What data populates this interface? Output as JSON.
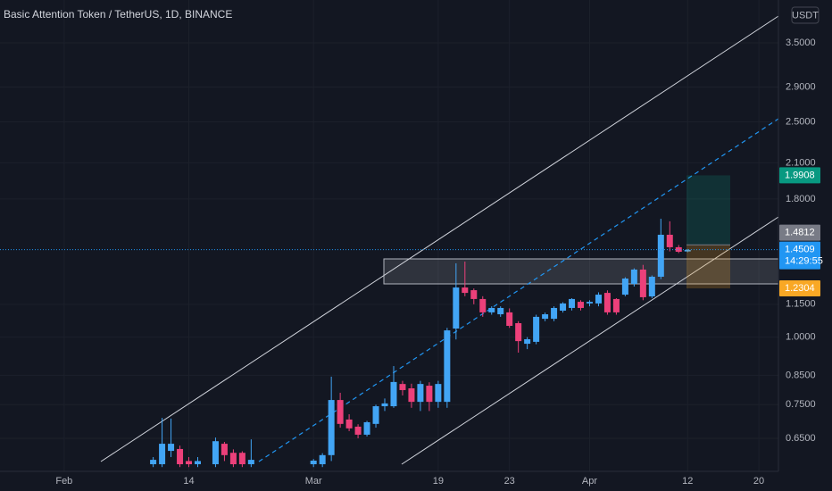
{
  "chart_data": {
    "type": "candlestick",
    "title": "Basic Attention Token / TetherUS, 1D, BINANCE",
    "currency_button": "USDT",
    "log_scale": true,
    "grid": true,
    "up_color": "#42a5f5",
    "down_color": "#ec407a",
    "x": [
      10,
      11,
      12,
      13,
      14,
      15,
      17,
      18,
      19,
      20,
      21,
      28,
      29,
      30,
      31,
      32,
      33,
      34,
      35,
      36,
      37,
      38,
      39,
      40,
      41,
      42,
      43,
      44,
      45,
      46,
      47,
      48,
      49,
      50,
      51,
      52,
      53,
      54,
      55,
      56,
      57,
      58,
      59,
      60,
      61,
      62,
      63,
      64,
      65,
      66,
      67,
      68,
      69,
      70
    ],
    "open": [
      0.582,
      0.582,
      0.616,
      0.621,
      0.59,
      0.582,
      0.582,
      0.635,
      0.611,
      0.611,
      0.582,
      0.582,
      0.582,
      0.605,
      0.765,
      0.704,
      0.683,
      0.66,
      0.691,
      0.745,
      0.745,
      0.819,
      0.804,
      0.759,
      0.813,
      0.759,
      0.759,
      1.037,
      1.235,
      1.221,
      1.176,
      1.111,
      1.102,
      1.111,
      1.061,
      0.972,
      0.98,
      1.081,
      1.081,
      1.119,
      1.132,
      1.162,
      1.154,
      1.154,
      1.207,
      1.176,
      1.198,
      1.254,
      1.333,
      1.189,
      1.293,
      1.546,
      1.466,
      1.44
    ],
    "high": [
      0.6,
      0.709,
      0.707,
      0.63,
      0.6,
      0.6,
      0.652,
      0.64,
      0.62,
      0.615,
      0.647,
      0.595,
      0.61,
      0.845,
      0.789,
      0.72,
      0.69,
      0.7,
      0.75,
      0.77,
      0.884,
      0.83,
      0.82,
      0.83,
      0.825,
      0.83,
      1.04,
      1.369,
      1.379,
      1.23,
      1.19,
      1.14,
      1.14,
      1.13,
      1.07,
      1.0,
      1.1,
      1.11,
      1.14,
      1.16,
      1.18,
      1.17,
      1.17,
      1.21,
      1.22,
      1.18,
      1.29,
      1.34,
      1.36,
      1.3,
      1.655,
      1.637,
      1.48,
      1.455
    ],
    "low": [
      0.575,
      0.575,
      0.6,
      0.575,
      0.575,
      0.575,
      0.575,
      0.59,
      0.575,
      0.575,
      0.575,
      0.575,
      0.575,
      0.59,
      0.68,
      0.67,
      0.65,
      0.655,
      0.68,
      0.73,
      0.74,
      0.78,
      0.74,
      0.73,
      0.73,
      0.74,
      0.74,
      0.99,
      1.19,
      1.15,
      1.09,
      1.1,
      1.09,
      1.04,
      0.936,
      0.95,
      0.97,
      1.07,
      1.07,
      1.11,
      1.12,
      1.12,
      1.14,
      1.14,
      1.1,
      1.1,
      1.19,
      1.24,
      1.17,
      1.18,
      1.28,
      1.44,
      1.43,
      1.435
    ],
    "close": [
      0.593,
      0.635,
      0.635,
      0.582,
      0.582,
      0.59,
      0.642,
      0.605,
      0.582,
      0.582,
      0.593,
      0.591,
      0.605,
      0.765,
      0.691,
      0.678,
      0.66,
      0.696,
      0.745,
      0.754,
      0.826,
      0.798,
      0.759,
      0.819,
      0.759,
      0.819,
      1.029,
      1.235,
      1.207,
      1.176,
      1.111,
      1.132,
      1.132,
      1.049,
      0.983,
      0.991,
      1.09,
      1.102,
      1.132,
      1.154,
      1.176,
      1.132,
      1.162,
      1.198,
      1.111,
      1.111,
      1.283,
      1.333,
      1.185,
      1.293,
      1.546,
      1.466,
      1.438,
      1.449
    ],
    "xlim": [
      -7.2,
      80.2
    ],
    "xticks": [
      {
        "value": 0,
        "label": "Feb"
      },
      14,
      {
        "value": 28,
        "label": "Mar"
      },
      {
        "value": 42,
        "label": "19"
      },
      {
        "value": 50,
        "label": "23"
      },
      {
        "value": 59,
        "label": "Apr"
      },
      {
        "value": 70,
        "label": "12"
      },
      {
        "value": 78,
        "label": "20"
      }
    ],
    "ylim": [
      0.5646,
      4.2
    ],
    "yticks": [
      {
        "value": 0.65,
        "label": "0.6500"
      },
      {
        "value": 0.75,
        "label": "0.7500"
      },
      {
        "value": 0.85,
        "label": "0.8500"
      },
      {
        "value": 1.0,
        "label": "1.0000"
      },
      {
        "value": 1.15,
        "label": "1.1500"
      },
      {
        "value": 1.8,
        "label": "1.8000"
      },
      {
        "value": 2.1,
        "label": "2.1000"
      },
      {
        "value": 2.5,
        "label": "2.5000"
      },
      {
        "value": 2.9,
        "label": "2.9000"
      },
      {
        "value": 3.5,
        "label": "3.5000"
      }
    ],
    "position": {
      "target": 1.9908,
      "entry": 1.4812,
      "stop": 1.2304
    },
    "price_labels": [
      {
        "value": 1.9908,
        "color": "#089981"
      },
      {
        "value": 1.4812,
        "color": "#787b86"
      },
      {
        "value": 1.4509,
        "color": "#2196f3",
        "countdown": "14:29:55"
      },
      {
        "value": 1.2304,
        "color": "#f9a825"
      }
    ]
  }
}
